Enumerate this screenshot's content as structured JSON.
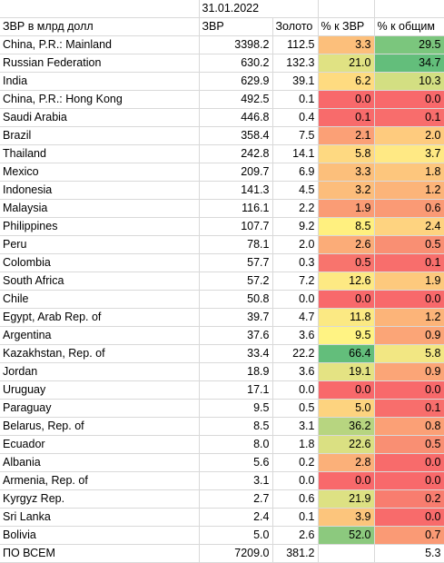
{
  "date": "31.01.2022",
  "headers": {
    "name": "ЗВР в млрд долл",
    "zvr": "ЗВР",
    "gold": "Золото",
    "pct_zvr": "% к ЗВР",
    "pct_total": "% к общим"
  },
  "colors": {
    "red": "#f8696b",
    "orange_red": "#fb9b75",
    "orange": "#fcc07c",
    "yellow": "#ffeb84",
    "yellow_green": "#d9e082",
    "light_green": "#bfd982",
    "green": "#8ac97e",
    "dark_green": "#63be7b"
  },
  "rows": [
    {
      "name": "China, P.R.: Mainland",
      "zvr": "3398.2",
      "gold": "112.5",
      "pct_zvr": "3.3",
      "pct_total": "29.5",
      "c1": "#fcbf7b",
      "c2": "#7bc67d"
    },
    {
      "name": "Russian Federation",
      "zvr": "630.2",
      "gold": "132.3",
      "pct_zvr": "21.0",
      "pct_total": "34.7",
      "c1": "#e0e283",
      "c2": "#63be7b"
    },
    {
      "name": "India",
      "zvr": "629.9",
      "gold": "39.1",
      "pct_zvr": "6.2",
      "pct_total": "10.3",
      "c1": "#fedb80",
      "c2": "#d3df82"
    },
    {
      "name": "China, P.R.: Hong Kong",
      "zvr": "492.5",
      "gold": "0.1",
      "pct_zvr": "0.0",
      "pct_total": "0.0",
      "c1": "#f8696b",
      "c2": "#f8696b"
    },
    {
      "name": "Saudi Arabia",
      "zvr": "446.8",
      "gold": "0.4",
      "pct_zvr": "0.1",
      "pct_total": "0.1",
      "c1": "#f86b6b",
      "c2": "#f86d6c"
    },
    {
      "name": "Brazil",
      "zvr": "358.4",
      "gold": "7.5",
      "pct_zvr": "2.1",
      "pct_total": "2.0",
      "c1": "#fba076",
      "c2": "#fecb7e"
    },
    {
      "name": "Thailand",
      "zvr": "242.8",
      "gold": "14.1",
      "pct_zvr": "5.8",
      "pct_total": "3.7",
      "c1": "#fed981",
      "c2": "#ffe984"
    },
    {
      "name": "Mexico",
      "zvr": "209.7",
      "gold": "6.9",
      "pct_zvr": "3.3",
      "pct_total": "1.8",
      "c1": "#fcbf7b",
      "c2": "#fdc67d"
    },
    {
      "name": "Indonesia",
      "zvr": "141.3",
      "gold": "4.5",
      "pct_zvr": "3.2",
      "pct_total": "1.2",
      "c1": "#fcbd7b",
      "c2": "#fcb479"
    },
    {
      "name": "Malaysia",
      "zvr": "116.1",
      "gold": "2.2",
      "pct_zvr": "1.9",
      "pct_total": "0.6",
      "c1": "#fa9c75",
      "c2": "#fa9a75"
    },
    {
      "name": "Philippines",
      "zvr": "107.7",
      "gold": "9.2",
      "pct_zvr": "8.5",
      "pct_total": "2.4",
      "c1": "#fff07f",
      "c2": "#fed380"
    },
    {
      "name": "Peru",
      "zvr": "78.1",
      "gold": "2.0",
      "pct_zvr": "2.6",
      "pct_total": "0.5",
      "c1": "#fbac78",
      "c2": "#f98f73"
    },
    {
      "name": "Colombia",
      "zvr": "57.7",
      "gold": "0.3",
      "pct_zvr": "0.5",
      "pct_total": "0.1",
      "c1": "#f8746d",
      "c2": "#f86e6c"
    },
    {
      "name": "South Africa",
      "zvr": "57.2",
      "gold": "7.2",
      "pct_zvr": "12.6",
      "pct_total": "1.9",
      "c1": "#fde983",
      "c2": "#fdc97d"
    },
    {
      "name": "Chile",
      "zvr": "50.8",
      "gold": "0.0",
      "pct_zvr": "0.0",
      "pct_total": "0.0",
      "c1": "#f8696b",
      "c2": "#f8696b"
    },
    {
      "name": "Egypt, Arab Rep. of",
      "zvr": "39.7",
      "gold": "4.7",
      "pct_zvr": "11.8",
      "pct_total": "1.2",
      "c1": "#fbe983",
      "c2": "#fcb479"
    },
    {
      "name": "Argentina",
      "zvr": "37.6",
      "gold": "3.6",
      "pct_zvr": "9.5",
      "pct_total": "0.9",
      "c1": "#fff383",
      "c2": "#fba577"
    },
    {
      "name": "Kazakhstan, Rep. of",
      "zvr": "33.4",
      "gold": "22.2",
      "pct_zvr": "66.4",
      "pct_total": "5.8",
      "c1": "#63be7b",
      "c2": "#f2e783"
    },
    {
      "name": "Jordan",
      "zvr": "18.9",
      "gold": "3.6",
      "pct_zvr": "19.1",
      "pct_total": "0.9",
      "c1": "#e4e383",
      "c2": "#fba577"
    },
    {
      "name": "Uruguay",
      "zvr": "17.1",
      "gold": "0.0",
      "pct_zvr": "0.0",
      "pct_total": "0.0",
      "c1": "#f8696b",
      "c2": "#f8696b"
    },
    {
      "name": "Paraguay",
      "zvr": "9.5",
      "gold": "0.5",
      "pct_zvr": "5.0",
      "pct_total": "0.1",
      "c1": "#fdd37f",
      "c2": "#f86e6c"
    },
    {
      "name": "Belarus, Rep. of",
      "zvr": "8.5",
      "gold": "3.1",
      "pct_zvr": "36.2",
      "pct_total": "0.8",
      "c1": "#b7d580",
      "c2": "#fba076"
    },
    {
      "name": "Ecuador",
      "zvr": "8.0",
      "gold": "1.8",
      "pct_zvr": "22.6",
      "pct_total": "0.5",
      "c1": "#dae082",
      "c2": "#f98f73"
    },
    {
      "name": "Albania",
      "zvr": "5.6",
      "gold": "0.2",
      "pct_zvr": "2.8",
      "pct_total": "0.0",
      "c1": "#fbb079",
      "c2": "#f86b6b"
    },
    {
      "name": "Armenia, Rep. of",
      "zvr": "3.1",
      "gold": "0.0",
      "pct_zvr": "0.0",
      "pct_total": "0.0",
      "c1": "#f8696b",
      "c2": "#f8696b"
    },
    {
      "name": "Kyrgyz Rep.",
      "zvr": "2.7",
      "gold": "0.6",
      "pct_zvr": "21.9",
      "pct_total": "0.2",
      "c1": "#dde183",
      "c2": "#f87d6f"
    },
    {
      "name": "Sri Lanka",
      "zvr": "2.4",
      "gold": "0.1",
      "pct_zvr": "3.9",
      "pct_total": "0.0",
      "c1": "#fcc57c",
      "c2": "#f86b6b"
    },
    {
      "name": "Bolivia",
      "zvr": "5.0",
      "gold": "2.6",
      "pct_zvr": "52.0",
      "pct_total": "0.7",
      "c1": "#8cc97e",
      "c2": "#fa9a75"
    }
  ],
  "total": {
    "name": "ПО ВСЕМ",
    "zvr": "7209.0",
    "gold": "381.2",
    "pct_zvr": "",
    "pct_total": "5.3"
  }
}
